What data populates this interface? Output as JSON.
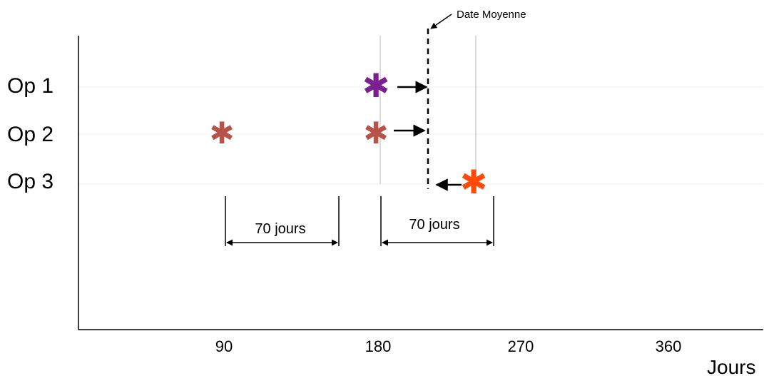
{
  "rows": [
    "Op 1",
    "Op 2",
    "Op 3"
  ],
  "axis": {
    "label": "Jours",
    "ticks": [
      "90",
      "180",
      "270",
      "360"
    ]
  },
  "mean_date": {
    "label": "Date Moyenne"
  },
  "spans": [
    {
      "label": "70 jours"
    },
    {
      "label": "70 jours"
    }
  ],
  "markers": [
    {
      "row": "Op 1",
      "glyph": "✱",
      "color": "#7a1f8c"
    },
    {
      "row": "Op 2",
      "glyph": "✱",
      "color": "#b5524a"
    },
    {
      "row": "Op 2",
      "glyph": "✱",
      "color": "#b5524a"
    },
    {
      "row": "Op 3",
      "glyph": "✱",
      "color": "#ff4a0a"
    }
  ],
  "colors": {
    "axis": "#000000",
    "guide": "#b0b0b0",
    "row_line": "#eeeeee"
  }
}
